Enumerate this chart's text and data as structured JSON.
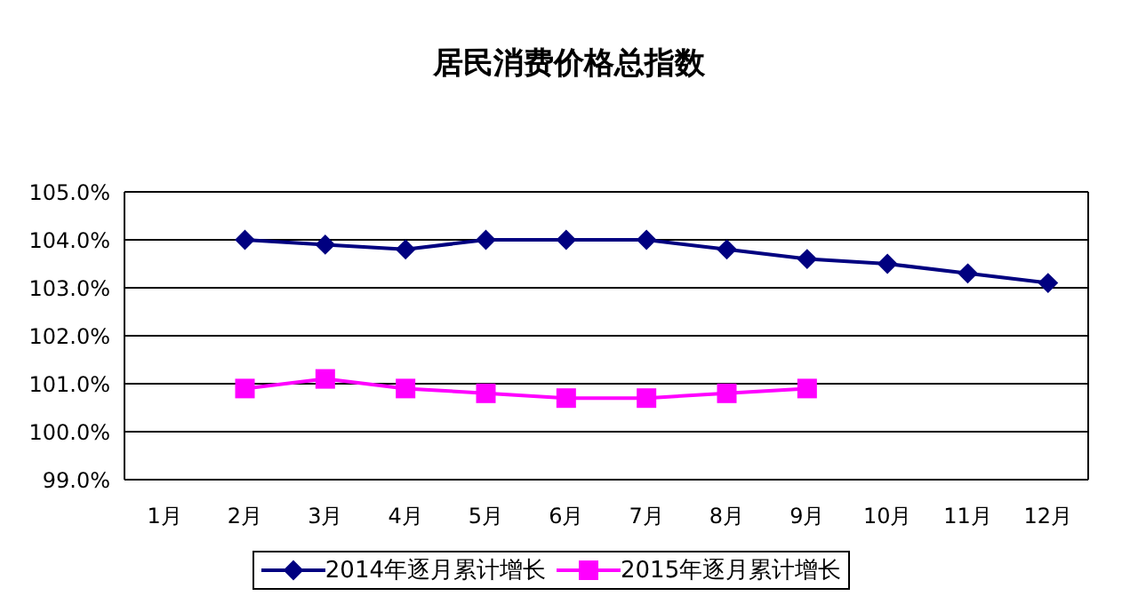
{
  "chart_data": {
    "type": "line",
    "title": "居民消费价格总指数",
    "categories": [
      "1月",
      "2月",
      "3月",
      "4月",
      "5月",
      "6月",
      "7月",
      "8月",
      "9月",
      "10月",
      "11月",
      "12月"
    ],
    "series": [
      {
        "name": "2014年逐月累计增长",
        "color": "#000080",
        "marker": "diamond",
        "values": [
          null,
          104.0,
          103.9,
          103.8,
          104.0,
          104.0,
          104.0,
          103.8,
          103.6,
          103.5,
          103.3,
          103.1
        ]
      },
      {
        "name": "2015年逐月累计增长",
        "color": "#ff00ff",
        "marker": "square",
        "values": [
          null,
          100.9,
          101.1,
          100.9,
          100.8,
          100.7,
          100.7,
          100.8,
          100.9,
          null,
          null,
          null
        ]
      }
    ],
    "ylim": [
      99,
      105
    ],
    "yticks": [
      {
        "value": 99,
        "label": "99.0%"
      },
      {
        "value": 100,
        "label": "100.0%"
      },
      {
        "value": 101,
        "label": "101.0%"
      },
      {
        "value": 102,
        "label": "102.0%"
      },
      {
        "value": 103,
        "label": "103.0%"
      },
      {
        "value": 104,
        "label": "104.0%"
      },
      {
        "value": 105,
        "label": "105.0%"
      }
    ],
    "grid": "y",
    "legend": "bottom"
  }
}
